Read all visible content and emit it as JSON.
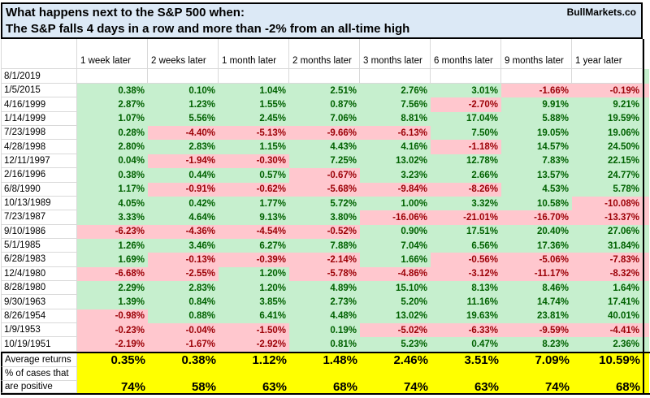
{
  "window": {
    "brand": "BullMarkets.co"
  },
  "title": {
    "line1": "What happens next to the S&P 500 when:",
    "line2": "The S&P falls 4 days in a row and more than -2% from an all-time high"
  },
  "table": {
    "columns": [
      "1 week later",
      "2 weeks later",
      "1 month later",
      "2 months later",
      "3 months later",
      "6 months later",
      "9 months later",
      "1 year later"
    ],
    "pending_row": {
      "date": "8/1/2019"
    },
    "rows": [
      {
        "date": "1/5/2015",
        "values": [
          "0.38%",
          "0.10%",
          "1.04%",
          "2.51%",
          "2.76%",
          "3.01%",
          "-1.66%",
          "-0.19%"
        ]
      },
      {
        "date": "4/16/1999",
        "values": [
          "2.87%",
          "1.23%",
          "1.55%",
          "0.87%",
          "7.56%",
          "-2.70%",
          "9.91%",
          "9.21%"
        ]
      },
      {
        "date": "1/14/1999",
        "values": [
          "1.07%",
          "5.56%",
          "2.45%",
          "7.06%",
          "8.81%",
          "17.04%",
          "5.88%",
          "19.59%"
        ]
      },
      {
        "date": "7/23/1998",
        "values": [
          "0.28%",
          "-4.40%",
          "-5.13%",
          "-9.66%",
          "-6.13%",
          "7.50%",
          "19.05%",
          "19.06%"
        ]
      },
      {
        "date": "4/28/1998",
        "values": [
          "2.80%",
          "2.83%",
          "1.15%",
          "4.43%",
          "4.16%",
          "-1.18%",
          "14.57%",
          "24.50%"
        ]
      },
      {
        "date": "12/11/1997",
        "values": [
          "0.04%",
          "-1.94%",
          "-0.30%",
          "7.25%",
          "13.02%",
          "12.78%",
          "7.83%",
          "22.15%"
        ]
      },
      {
        "date": "2/16/1996",
        "values": [
          "0.38%",
          "0.44%",
          "0.57%",
          "-0.67%",
          "3.23%",
          "2.66%",
          "13.57%",
          "24.77%"
        ]
      },
      {
        "date": "6/8/1990",
        "values": [
          "1.17%",
          "-0.91%",
          "-0.62%",
          "-5.68%",
          "-9.84%",
          "-8.26%",
          "4.53%",
          "5.78%"
        ]
      },
      {
        "date": "10/13/1989",
        "values": [
          "4.05%",
          "0.42%",
          "1.77%",
          "5.72%",
          "1.00%",
          "3.32%",
          "10.58%",
          "-10.08%"
        ]
      },
      {
        "date": "7/23/1987",
        "values": [
          "3.33%",
          "4.64%",
          "9.13%",
          "3.80%",
          "-16.06%",
          "-21.01%",
          "-16.70%",
          "-13.37%"
        ]
      },
      {
        "date": "9/10/1986",
        "values": [
          "-6.23%",
          "-4.36%",
          "-4.54%",
          "-0.52%",
          "0.90%",
          "17.51%",
          "20.40%",
          "27.06%"
        ]
      },
      {
        "date": "5/1/1985",
        "values": [
          "1.26%",
          "3.46%",
          "6.27%",
          "7.88%",
          "7.04%",
          "6.56%",
          "17.36%",
          "31.84%"
        ]
      },
      {
        "date": "6/28/1983",
        "values": [
          "1.69%",
          "-0.13%",
          "-0.39%",
          "-2.14%",
          "1.66%",
          "-0.56%",
          "-5.06%",
          "-7.83%"
        ]
      },
      {
        "date": "12/4/1980",
        "values": [
          "-6.68%",
          "-2.55%",
          "1.20%",
          "-5.78%",
          "-4.86%",
          "-3.12%",
          "-11.17%",
          "-8.32%"
        ]
      },
      {
        "date": "8/28/1980",
        "values": [
          "2.29%",
          "2.83%",
          "1.20%",
          "4.89%",
          "15.10%",
          "8.13%",
          "8.46%",
          "1.64%"
        ]
      },
      {
        "date": "9/30/1963",
        "values": [
          "1.39%",
          "0.84%",
          "3.85%",
          "2.73%",
          "5.20%",
          "11.16%",
          "14.74%",
          "17.41%"
        ]
      },
      {
        "date": "8/26/1954",
        "values": [
          "-0.98%",
          "0.88%",
          "6.41%",
          "4.48%",
          "13.02%",
          "19.63%",
          "23.81%",
          "40.01%"
        ]
      },
      {
        "date": "1/9/1953",
        "values": [
          "-0.23%",
          "-0.04%",
          "-1.50%",
          "0.19%",
          "-5.02%",
          "-6.33%",
          "-9.59%",
          "-4.41%"
        ]
      },
      {
        "date": "10/19/1951",
        "values": [
          "-2.19%",
          "-1.67%",
          "-2.92%",
          "0.81%",
          "5.23%",
          "0.47%",
          "8.23%",
          "2.36%"
        ]
      }
    ],
    "summary": {
      "average_label": "Average returns",
      "average_values": [
        "0.35%",
        "0.38%",
        "1.12%",
        "1.48%",
        "2.46%",
        "3.51%",
        "7.09%",
        "10.59%"
      ],
      "positive_label_line1": "% of cases that",
      "positive_label_line2": "are positive",
      "positive_values": [
        "74%",
        "58%",
        "63%",
        "68%",
        "74%",
        "63%",
        "74%",
        "68%"
      ]
    }
  },
  "colors": {
    "positive_bg": "#C6EFCE",
    "positive_text": "#006100",
    "negative_bg": "#FFC7CE",
    "negative_text": "#9C0006",
    "summary_bg": "#FFFF00",
    "title_bg": "#DCE9F6"
  }
}
